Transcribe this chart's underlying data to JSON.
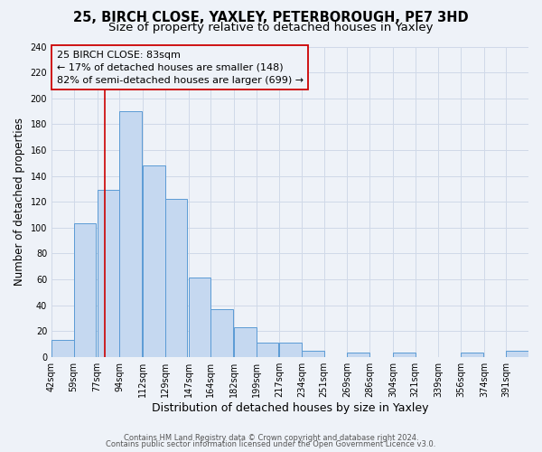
{
  "title": "25, BIRCH CLOSE, YAXLEY, PETERBOROUGH, PE7 3HD",
  "subtitle": "Size of property relative to detached houses in Yaxley",
  "xlabel": "Distribution of detached houses by size in Yaxley",
  "ylabel": "Number of detached properties",
  "bin_labels": [
    "42sqm",
    "59sqm",
    "77sqm",
    "94sqm",
    "112sqm",
    "129sqm",
    "147sqm",
    "164sqm",
    "182sqm",
    "199sqm",
    "217sqm",
    "234sqm",
    "251sqm",
    "269sqm",
    "286sqm",
    "304sqm",
    "321sqm",
    "339sqm",
    "356sqm",
    "374sqm",
    "391sqm"
  ],
  "bin_edges": [
    42,
    59,
    77,
    94,
    112,
    129,
    147,
    164,
    182,
    199,
    217,
    234,
    251,
    269,
    286,
    304,
    321,
    339,
    356,
    374,
    391
  ],
  "counts": [
    13,
    103,
    129,
    190,
    148,
    122,
    61,
    37,
    23,
    11,
    11,
    5,
    0,
    3,
    0,
    3,
    0,
    0,
    3,
    0,
    5
  ],
  "bar_facecolor": "#c5d8f0",
  "bar_edgecolor": "#5b9bd5",
  "grid_color": "#d0d9e8",
  "background_color": "#eef2f8",
  "vline_x": 83,
  "vline_color": "#cc0000",
  "annotation_line1": "25 BIRCH CLOSE: 83sqm",
  "annotation_line2": "← 17% of detached houses are smaller (148)",
  "annotation_line3": "82% of semi-detached houses are larger (699) →",
  "annotation_box_edgecolor": "#cc0000",
  "ylim": [
    0,
    240
  ],
  "yticks": [
    0,
    20,
    40,
    60,
    80,
    100,
    120,
    140,
    160,
    180,
    200,
    220,
    240
  ],
  "footer_line1": "Contains HM Land Registry data © Crown copyright and database right 2024.",
  "footer_line2": "Contains public sector information licensed under the Open Government Licence v3.0.",
  "title_fontsize": 10.5,
  "subtitle_fontsize": 9.5,
  "xlabel_fontsize": 9,
  "ylabel_fontsize": 8.5,
  "tick_fontsize": 7,
  "annotation_fontsize": 8,
  "footer_fontsize": 6
}
